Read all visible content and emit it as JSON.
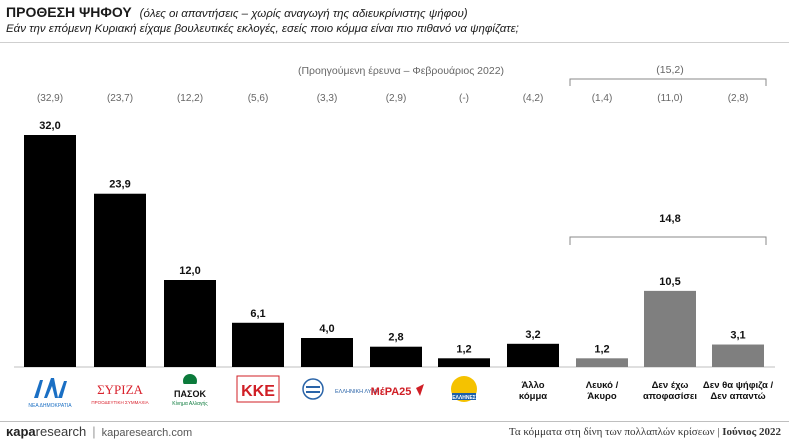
{
  "header": {
    "title": "ΠΡΟΘΕΣΗ ΨΗΦΟΥ",
    "subtitle": "(όλες οι απαντήσεις – χωρίς αναγωγή της αδιευκρίνιστης ψήφου)",
    "question": "Εάν την επόμενη Κυριακή είχαμε βουλευτικές εκλογές, εσείς ποιο κόμμα είναι πιο πιθανό να ψηφίζατε;"
  },
  "chart_data": {
    "type": "bar",
    "categories": [
      "ΝΔ",
      "ΣΥΡΙΖΑ",
      "ΠΑΣΟΚ",
      "ΚΚΕ",
      "ΕΛΛΗΝΙΚΗ ΛΥΣΗ",
      "ΜέΡΑ25",
      "ΕΛΛΗΝΕΣ",
      "Άλλο κόμμα",
      "Λευκό / Άκυρο",
      "Δεν έχω αποφασίσει",
      "Δεν θα ψήφιζα / Δεν απαντώ"
    ],
    "values": [
      32.0,
      23.9,
      12.0,
      6.1,
      4.0,
      2.8,
      1.2,
      3.2,
      1.2,
      10.5,
      3.1
    ],
    "value_labels": [
      "32,0",
      "23,9",
      "12,0",
      "6,1",
      "4,0",
      "2,8",
      "1,2",
      "3,2",
      "1,2",
      "10,5",
      "3,1"
    ],
    "previous_labels": [
      "(32,9)",
      "(23,7)",
      "(12,2)",
      "(5,6)",
      "(3,3)",
      "(2,9)",
      "(-)",
      "(4,2)",
      "(1,4)",
      "(11,0)",
      "(2,8)"
    ],
    "previous_caption": "(Προηγούμενη έρευνα – Φεβρουάριος 2022)",
    "group_previous_total": "(15,2)",
    "group_total": "14,8",
    "colors": {
      "primary": "#000000",
      "secondary": "#7f7f7f"
    },
    "ylim": [
      0,
      33
    ]
  },
  "logos": {
    "nd": {
      "mark": "ΝΔ",
      "caption": "ΝΕΑ ΔΗΜΟΚΡΑΤΙΑ",
      "color": "#1a6fc4"
    },
    "syriza": {
      "mark": "ΣΥΡΙΖΑ",
      "caption": "ΠΡΟΟΔΕΥΤΙΚΗ ΣΥΜΜΑΧΙΑ",
      "color": "#d9232e"
    },
    "pasok": {
      "mark": "ΠΑΣΟΚ",
      "caption": "Κίνημα Αλλαγής",
      "color": "#0b7a3b"
    },
    "kke": {
      "mark": "ΚΚΕ",
      "color": "#d01f26"
    },
    "elliniki": {
      "mark": "ΕΛΛΗΝΙΚΗ ΛΥΣΗ",
      "color": "#2a64a8"
    },
    "mera25": {
      "mark": "ΜέΡΑ25",
      "color": "#d01f26"
    },
    "ellines": {
      "mark": "ΕΛΛΗΝΕΣ",
      "color": "#1d5fa8"
    }
  },
  "footer": {
    "brand_name": "κapa",
    "brand_tail": "research",
    "url": "kaparesearch.com",
    "caption": "Τα κόμματα στη δίνη των πολλαπλών κρίσεων",
    "separator": "|",
    "month": "Ιούνιος 2022"
  }
}
